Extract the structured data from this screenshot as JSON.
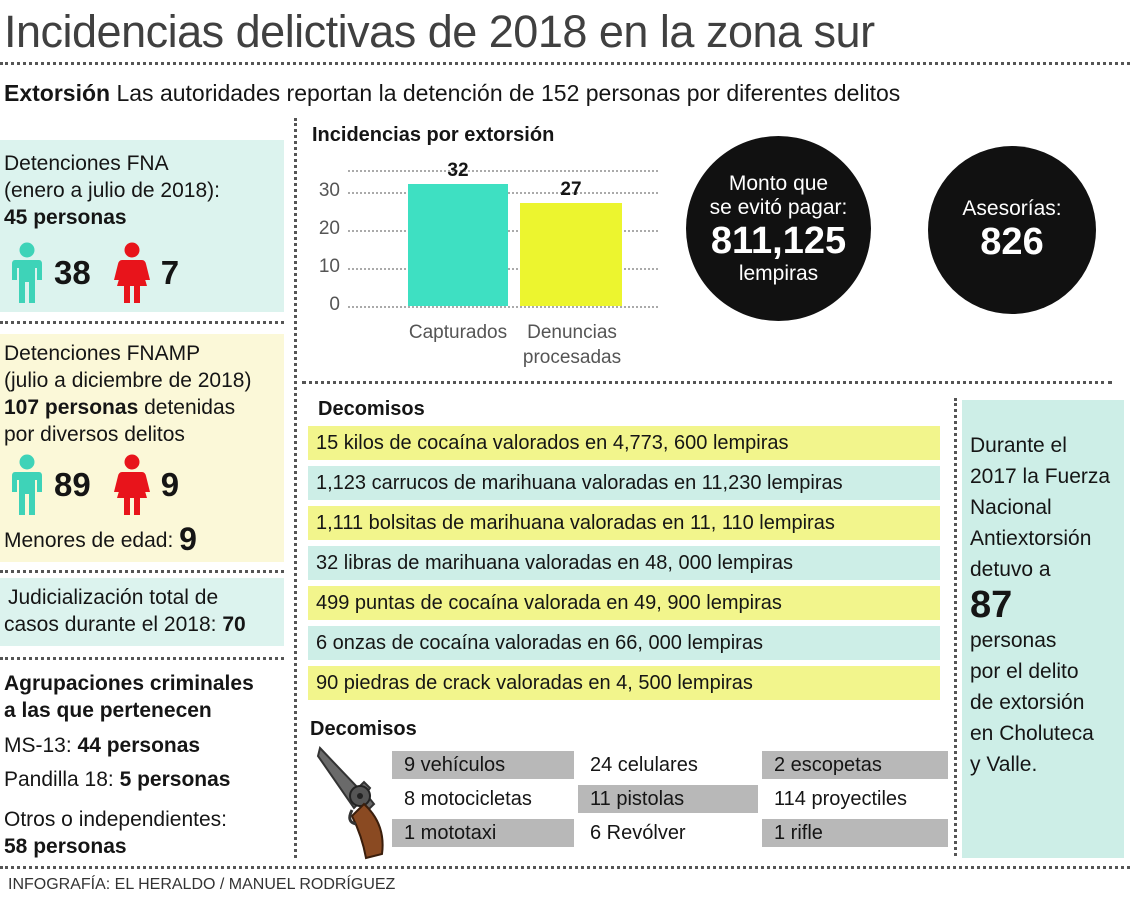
{
  "header": {
    "title": "Incidencias delictivas de 2018 en la zona sur",
    "subtitle_bold": "Extorsión",
    "subtitle_rest": " Las autoridades reportan la detención de 152 personas por diferentes delitos"
  },
  "fna": {
    "line1": "Detenciones FNA",
    "line2": "(enero a julio de 2018):",
    "total": "45 personas",
    "male": "38",
    "female": "7"
  },
  "fnamp": {
    "line1": "Detenciones FNAMP",
    "line2": "(julio a diciembre de 2018)",
    "total_bold": "107 personas",
    "total_rest": " detenidas",
    "line4": "por diversos delitos",
    "male": "89",
    "female": "9",
    "minors_label": "Menores de edad: ",
    "minors_value": "9"
  },
  "judicial": {
    "line1": "Judicialización total de",
    "line2_label": "casos durante el 2018: ",
    "line2_value": "70"
  },
  "groups": {
    "title1": "Agrupaciones criminales",
    "title2": "a las que pertenecen",
    "ms13_label": "MS-13: ",
    "ms13_value": "44 personas",
    "p18_label": "Pandilla 18: ",
    "p18_value": "5 personas",
    "otros_label": "Otros o independientes:",
    "otros_value": "58 personas"
  },
  "chart_data": {
    "type": "bar",
    "title": "Incidencias por extorsión",
    "categories": [
      "Capturados",
      "Denuncias procesadas"
    ],
    "category_lines": [
      [
        "Capturados"
      ],
      [
        "Denuncias",
        "procesadas"
      ]
    ],
    "values": [
      32,
      27
    ],
    "value_labels": [
      "32",
      "27"
    ],
    "yticks": [
      "0",
      "10",
      "20",
      "30"
    ],
    "ylim": [
      0,
      36
    ],
    "colors": [
      "#3ee0c2",
      "#ecf52f"
    ]
  },
  "monto": {
    "line1": "Monto que",
    "line2": "se evitó pagar:",
    "value": "811,125",
    "unit": "lempiras"
  },
  "asesorias": {
    "label": "Asesorías:",
    "value": "826"
  },
  "decomisos1": {
    "title": "Decomisos",
    "items": [
      "15 kilos de cocaína valorados en 4,773, 600 lempiras",
      "1,123 carrucos de marihuana valoradas en 11,230 lempiras",
      "1,111 bolsitas de marihuana valoradas en 11, 110 lempiras",
      "32 libras de marihuana valoradas en 48, 000 lempiras",
      "499 puntas de cocaína valorada en 49, 900 lempiras",
      "6 onzas de cocaína valoradas en 66, 000 lempiras",
      "90 piedras de crack valoradas en 4, 500 lempiras"
    ]
  },
  "decomisos2": {
    "title": "Decomisos",
    "col1": [
      "9 vehículos",
      "8 motocicletas",
      "1 mototaxi"
    ],
    "col2": [
      "24 celulares",
      "11 pistolas",
      "6 Revólver"
    ],
    "col3": [
      "2 escopetas",
      "114 proyectiles",
      "1 rifle"
    ]
  },
  "side_note": {
    "lines_top": [
      "Durante el",
      "2017 la Fuerza",
      "Nacional",
      "Antiextorsión",
      "detuvo a"
    ],
    "number": "87",
    "lines_bottom": [
      "personas",
      "por el delito",
      "de extorsión",
      "en Choluteca",
      "y Valle."
    ]
  },
  "credit": "INFOGRAFÍA: EL HERALDO / MANUEL RODRÍGUEZ",
  "colors": {
    "male": "#3ed3b8",
    "female": "#e8141b",
    "yellow_band": "#f2f58c",
    "mint_band": "#cdeee7",
    "gray_cell": "#b8b8b8"
  },
  "icons": {
    "male": "male-person-icon",
    "female": "female-person-icon",
    "revolver": "revolver-icon"
  }
}
